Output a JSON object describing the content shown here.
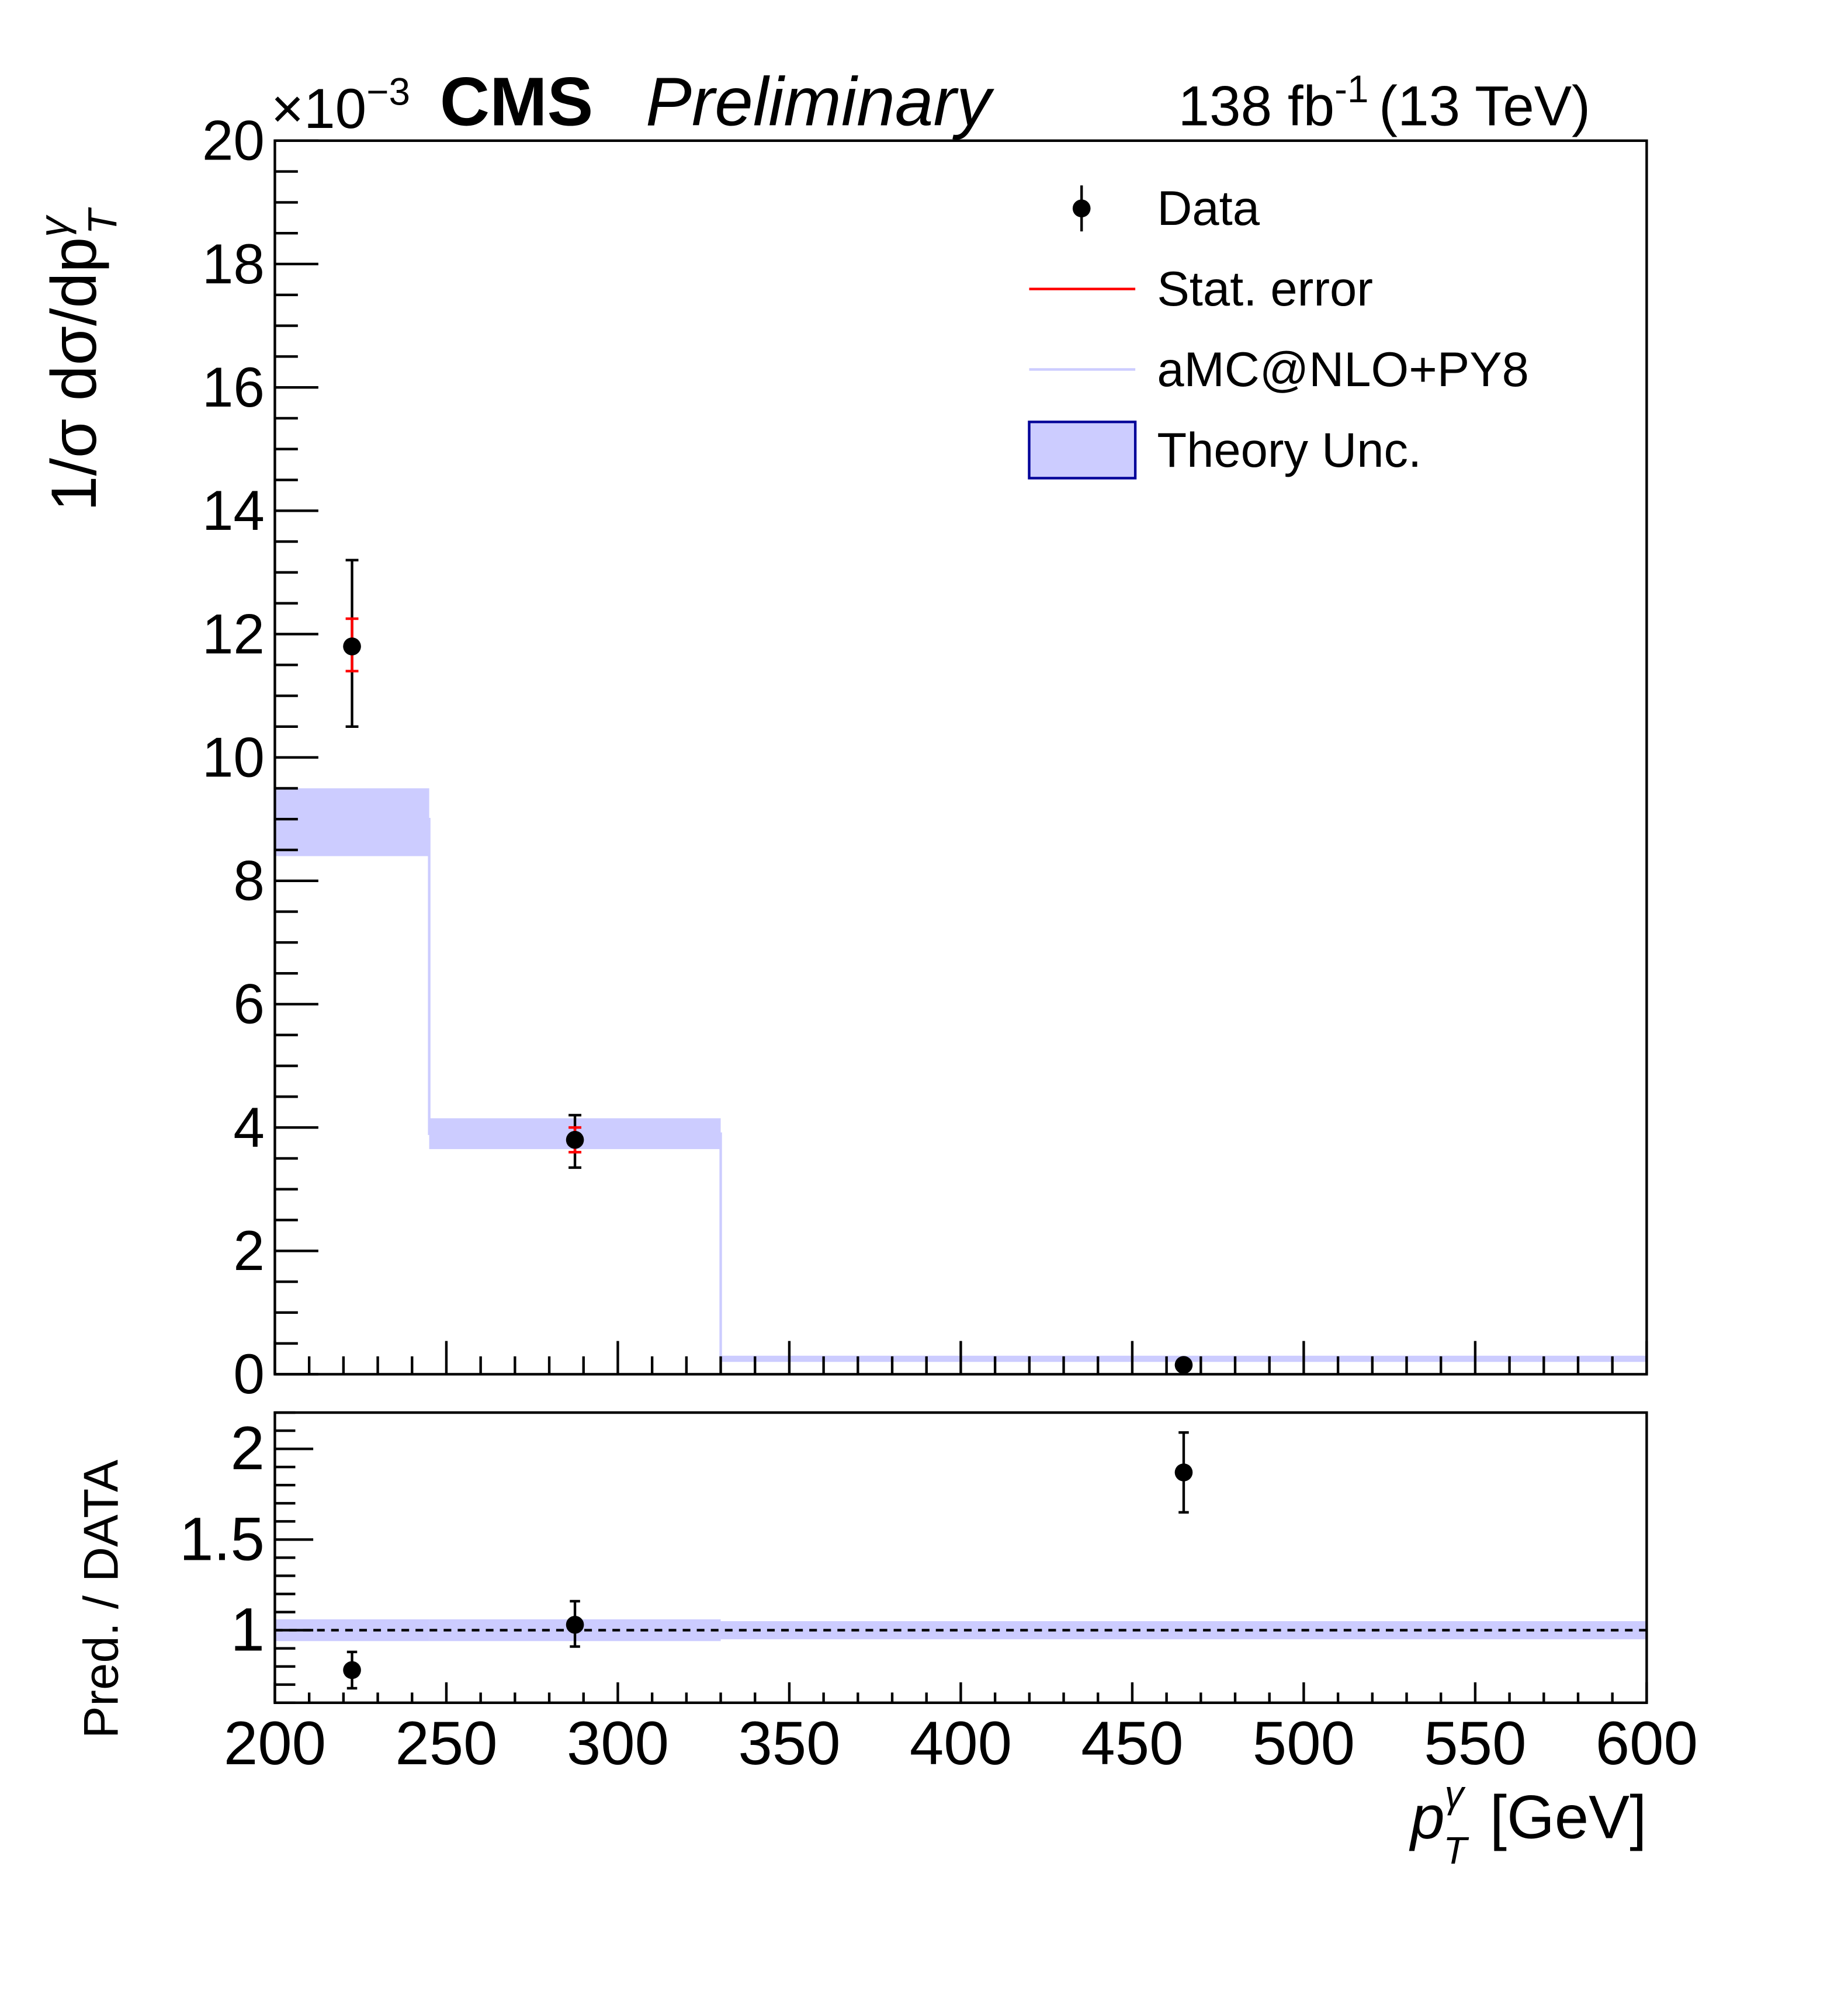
{
  "chart_data": {
    "type": "scatter",
    "header": {
      "experiment": "CMS",
      "status": "Preliminary",
      "lumi": "138 fb",
      "lumi_exp": "-1",
      "energy": "(13 TeV)",
      "exponent": "×10",
      "exponent_power": "−3"
    },
    "ylabel": "1/σ dσ/dp",
    "ylabel_sup": "γ",
    "ylabel_sub": "T",
    "xlabel": "p",
    "xlabel_sup": "γ",
    "xlabel_sub": "T",
    "xlabel_unit": "[GeV]",
    "xlim": [
      200,
      600
    ],
    "ylim": [
      0,
      20
    ],
    "xticks": [
      "200",
      "250",
      "300",
      "350",
      "400",
      "450",
      "500",
      "550",
      "600"
    ],
    "yticks": [
      "0",
      "2",
      "4",
      "6",
      "8",
      "10",
      "12",
      "14",
      "16",
      "18",
      "20"
    ],
    "bins": [
      [
        200,
        245
      ],
      [
        245,
        330
      ],
      [
        330,
        600
      ]
    ],
    "legend": {
      "placement": "top-right",
      "entries": [
        "Data",
        "Stat. error",
        "aMC@NLO+PY8",
        "Theory Unc."
      ]
    },
    "colors": {
      "theory_fill": "#ccccff",
      "theory_edge": "#000099",
      "stat": "#ff0000",
      "data": "#000000"
    },
    "series": [
      {
        "name": "Data",
        "x": [
          222.5,
          287.5,
          465
        ],
        "y": [
          11.8,
          3.8,
          0.15
        ],
        "err_low": [
          10.5,
          3.35,
          0.1
        ],
        "err_high": [
          13.2,
          4.2,
          0.2
        ],
        "stat_low": [
          11.4,
          3.6,
          0.13
        ],
        "stat_high": [
          12.25,
          4.0,
          0.17
        ]
      },
      {
        "name": "aMC@NLO+PY8",
        "y": [
          9.0,
          3.9,
          0.25
        ],
        "band_low": [
          8.4,
          3.65,
          0.2
        ],
        "band_high": [
          9.5,
          4.15,
          0.3
        ]
      }
    ],
    "ratio": {
      "ylabel": "Pred. / DATA",
      "ylim": [
        0.6,
        2.2
      ],
      "yticks": [
        "1",
        "1.5",
        "2"
      ],
      "values": [
        0.78,
        1.03,
        1.87
      ],
      "err_low": [
        0.68,
        0.91,
        1.65
      ],
      "err_high": [
        0.88,
        1.16,
        2.09
      ],
      "band_low": [
        0.94,
        0.94,
        0.95
      ],
      "band_high": [
        1.06,
        1.06,
        1.05
      ]
    }
  }
}
